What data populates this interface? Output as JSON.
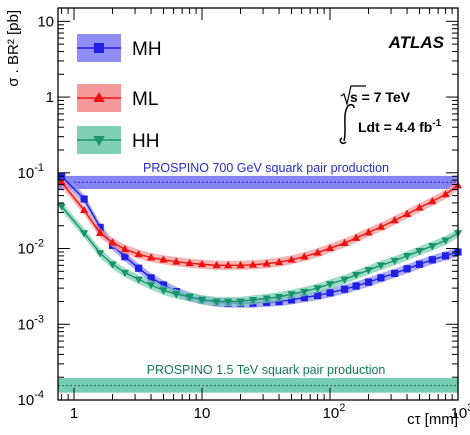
{
  "chart_data": {
    "type": "line",
    "experiment_label": "ATLAS",
    "energy_label": "s = 7 TeV",
    "lumi_label": "Ldt = 4.4 fb",
    "lumi_exponent": "-1",
    "xlabel": "cτ [mm]",
    "ylabel": "σ . BR² [pb]",
    "x_scale": "log",
    "y_scale": "log",
    "xlim": [
      0.75,
      1000
    ],
    "ylim": [
      0.0001,
      15
    ],
    "x_ticks": [
      {
        "value": 1,
        "base": "1",
        "exp": ""
      },
      {
        "value": 10,
        "base": "10",
        "exp": ""
      },
      {
        "value": 100,
        "base": "10",
        "exp": "2"
      },
      {
        "value": 1000,
        "base": "10",
        "exp": "3"
      }
    ],
    "y_ticks": [
      {
        "value": 0.0001,
        "base": "10",
        "exp": "-4"
      },
      {
        "value": 0.001,
        "base": "10",
        "exp": "-3"
      },
      {
        "value": 0.01,
        "base": "10",
        "exp": "-2"
      },
      {
        "value": 0.1,
        "base": "10",
        "exp": "-1"
      },
      {
        "value": 1,
        "base": "1",
        "exp": ""
      },
      {
        "value": 10,
        "base": "10",
        "exp": ""
      }
    ],
    "legend_position": "top-left",
    "bands": [
      {
        "label": "PROSPINO 700 GeV squark pair production",
        "center": 0.075,
        "low": 0.061,
        "high": 0.091,
        "color": "#6f6ff2",
        "line": "#2222dd",
        "text_color": "#2a2acc"
      },
      {
        "label": "PROSPINO 1.5 TeV squark pair production",
        "center": 0.000155,
        "low": 0.000125,
        "high": 0.000195,
        "color": "#5fc4a4",
        "line": "#127a50",
        "text_color": "#127a55"
      }
    ],
    "series": [
      {
        "name": "MH",
        "color": "#1f1fe6",
        "band": "#8f8ff5",
        "marker": "square",
        "x": [
          0.8,
          1.2,
          1.6,
          2.0,
          2.5,
          3.2,
          4.0,
          5.0,
          6.3,
          8.0,
          10,
          13,
          16,
          20,
          25,
          32,
          40,
          50,
          63,
          80,
          100,
          130,
          160,
          200,
          250,
          320,
          400,
          500,
          630,
          800,
          1000
        ],
        "y": [
          0.09,
          0.045,
          0.019,
          0.011,
          0.0078,
          0.0055,
          0.0041,
          0.0033,
          0.0027,
          0.0023,
          0.0021,
          0.00195,
          0.0019,
          0.0019,
          0.0019,
          0.00195,
          0.002,
          0.0021,
          0.00225,
          0.0024,
          0.0026,
          0.0029,
          0.0032,
          0.0036,
          0.0041,
          0.0047,
          0.0054,
          0.0062,
          0.0071,
          0.008,
          0.009
        ]
      },
      {
        "name": "ML",
        "color": "#ee1111",
        "band": "#f59a9a",
        "marker": "triangle-up",
        "x": [
          0.8,
          1.2,
          1.6,
          2.0,
          2.5,
          3.2,
          4.0,
          5.0,
          6.3,
          8.0,
          10,
          13,
          16,
          20,
          25,
          32,
          40,
          50,
          63,
          80,
          100,
          130,
          160,
          200,
          250,
          320,
          400,
          500,
          630,
          800,
          1000
        ],
        "y": [
          0.075,
          0.032,
          0.016,
          0.012,
          0.0098,
          0.0084,
          0.0076,
          0.0071,
          0.0067,
          0.0064,
          0.0062,
          0.006,
          0.006,
          0.006,
          0.0061,
          0.0063,
          0.0066,
          0.0071,
          0.0078,
          0.0088,
          0.0101,
          0.0118,
          0.0138,
          0.0163,
          0.0193,
          0.0235,
          0.0285,
          0.0345,
          0.042,
          0.052,
          0.068
        ]
      },
      {
        "name": "HH",
        "color": "#16956a",
        "band": "#7fd0b4",
        "marker": "triangle-down",
        "x": [
          0.8,
          1.2,
          1.6,
          2.0,
          2.5,
          3.2,
          4.0,
          5.0,
          6.3,
          8.0,
          10,
          13,
          16,
          20,
          25,
          32,
          40,
          50,
          63,
          80,
          100,
          130,
          160,
          200,
          250,
          320,
          400,
          500,
          630,
          800,
          1000
        ],
        "y": [
          0.036,
          0.016,
          0.0087,
          0.0062,
          0.0048,
          0.0039,
          0.0033,
          0.0028,
          0.0025,
          0.0023,
          0.0021,
          0.002,
          0.002,
          0.002,
          0.0021,
          0.0022,
          0.0023,
          0.0025,
          0.0027,
          0.003,
          0.0034,
          0.0039,
          0.0045,
          0.0052,
          0.006,
          0.0069,
          0.008,
          0.0093,
          0.0108,
          0.0128,
          0.016
        ]
      }
    ]
  }
}
